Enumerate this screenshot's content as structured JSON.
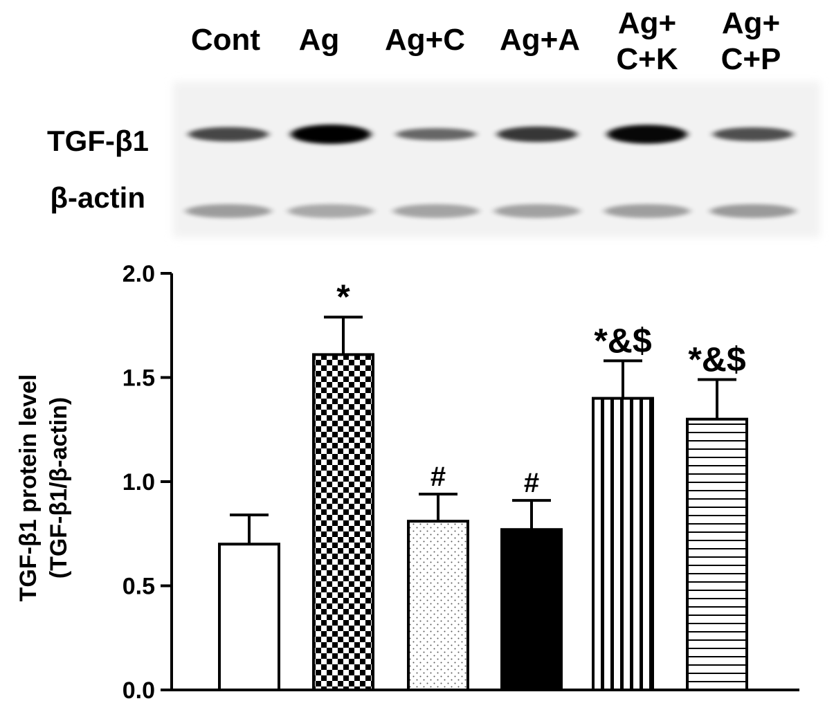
{
  "blot": {
    "lanes": [
      "Cont",
      "Ag",
      "Ag+C",
      "Ag+A",
      "Ag+\nC+K",
      "Ag+\nC+P"
    ],
    "row_labels": [
      "TGF-β1",
      "β-actin"
    ],
    "tgf_intensity": [
      0.55,
      1.0,
      0.35,
      0.65,
      0.95,
      0.5
    ],
    "actin_intensity": [
      0.35,
      0.3,
      0.32,
      0.33,
      0.34,
      0.36
    ]
  },
  "chart_data": {
    "type": "bar",
    "categories": [
      "Cont",
      "Ag",
      "Ag+C",
      "Ag+A",
      "Ag+C+K",
      "Ag+C+P"
    ],
    "values": [
      0.7,
      1.61,
      0.81,
      0.77,
      1.4,
      1.3
    ],
    "errors": [
      0.14,
      0.18,
      0.13,
      0.14,
      0.18,
      0.19
    ],
    "annotations": [
      "",
      "*",
      "#",
      "#",
      "*&$",
      "*&$"
    ],
    "patterns": [
      "white",
      "checker",
      "dots",
      "solid",
      "vertical-stripes",
      "horizontal-stripes"
    ],
    "ylabel_line1": "TGF-β1 protein level",
    "ylabel_line2": "(TGF-β1/β-actin)",
    "ylim": [
      0,
      2.0
    ],
    "yticks": [
      "0.0",
      "0.5",
      "1.0",
      "1.5",
      "2.0"
    ],
    "ytick_values": [
      0,
      0.5,
      1.0,
      1.5,
      2.0
    ],
    "grid": false
  }
}
